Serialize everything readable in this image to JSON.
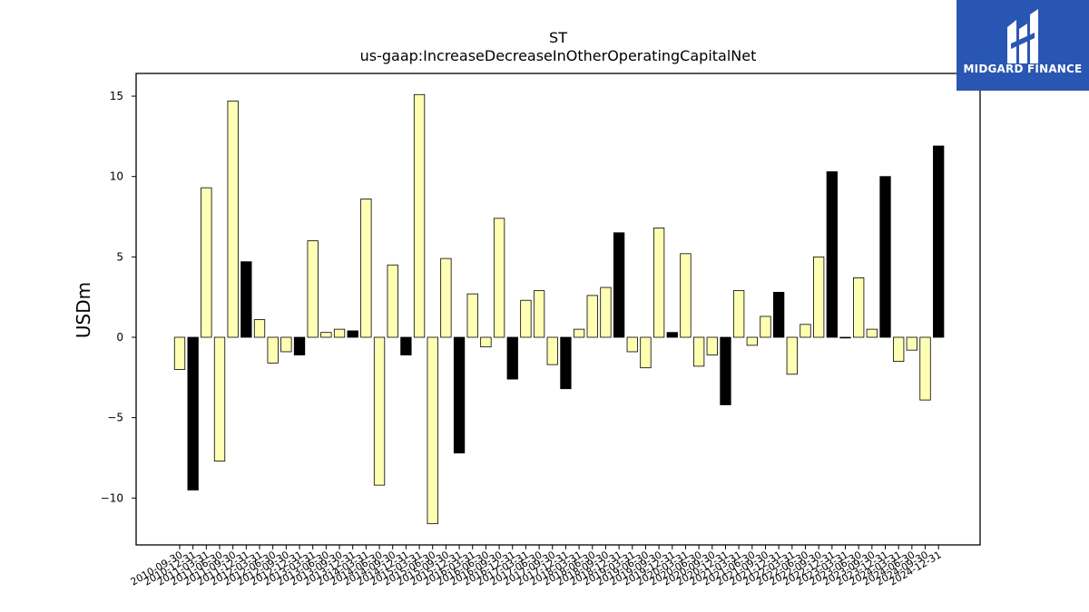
{
  "chart_data": {
    "type": "bar",
    "title": "ST",
    "subtitle": "us-gaap:IncreaseDecreaseInOtherOperatingCapitalNet",
    "ylabel": "USDm",
    "xlabel": "",
    "ylim": [
      -13,
      16.5
    ],
    "yticks": [
      -10,
      -5,
      0,
      5,
      10,
      15
    ],
    "ytick_labels": [
      "−10",
      "−5",
      "0",
      "5",
      "10",
      "15"
    ],
    "grid": false,
    "colors": {
      "default": "#ffffb3",
      "q4": "#000000",
      "edge": "#000000"
    },
    "categories": [
      "2010-09-30",
      "2010-12-31",
      "2011-03-31",
      "2011-06-30",
      "2011-09-30",
      "2011-12-31",
      "2012-03-31",
      "2012-06-30",
      "2012-09-30",
      "2012-12-31",
      "2013-03-31",
      "2013-06-30",
      "2013-09-30",
      "2013-12-31",
      "2014-03-31",
      "2014-06-30",
      "2014-09-30",
      "2014-12-31",
      "2015-03-31",
      "2015-06-30",
      "2015-09-30",
      "2015-12-31",
      "2016-03-31",
      "2016-06-30",
      "2016-09-30",
      "2016-12-31",
      "2017-03-31",
      "2017-06-30",
      "2017-09-30",
      "2017-12-31",
      "2018-03-31",
      "2018-06-30",
      "2018-09-30",
      "2018-12-31",
      "2019-03-31",
      "2019-06-30",
      "2019-09-30",
      "2019-12-31",
      "2020-03-31",
      "2020-06-30",
      "2020-09-30",
      "2020-12-31",
      "2021-03-31",
      "2021-06-30",
      "2021-09-30",
      "2021-12-31",
      "2022-03-31",
      "2022-06-30",
      "2022-09-30",
      "2022-12-31",
      "2023-03-31",
      "2023-06-30",
      "2023-09-30",
      "2023-12-31",
      "2024-03-31",
      "2024-06-30",
      "2024-09-30",
      "2024-12-31"
    ],
    "values": [
      -2.0,
      -9.5,
      9.3,
      -7.7,
      14.7,
      4.7,
      1.1,
      -1.6,
      -0.9,
      -1.1,
      6.0,
      0.3,
      0.5,
      0.4,
      8.6,
      -9.2,
      4.5,
      -1.1,
      15.1,
      -11.6,
      4.9,
      -7.2,
      2.7,
      -0.6,
      7.4,
      -2.6,
      2.3,
      2.9,
      -1.7,
      -3.2,
      0.5,
      2.6,
      3.1,
      6.5,
      -0.9,
      -1.9,
      6.8,
      0.3,
      5.2,
      -1.8,
      -1.1,
      -4.2,
      2.9,
      -0.5,
      1.3,
      2.8,
      -2.3,
      0.8,
      5.0,
      10.3,
      0.0,
      3.7,
      0.5,
      10.0,
      -1.5,
      -0.8,
      -3.9,
      11.9
    ],
    "highlight_q4": [
      false,
      true,
      false,
      false,
      false,
      true,
      false,
      false,
      false,
      true,
      false,
      false,
      false,
      true,
      false,
      false,
      false,
      true,
      false,
      false,
      false,
      true,
      false,
      false,
      false,
      true,
      false,
      false,
      false,
      true,
      false,
      false,
      false,
      true,
      false,
      false,
      false,
      true,
      false,
      false,
      false,
      true,
      false,
      false,
      false,
      true,
      false,
      false,
      false,
      true,
      false,
      false,
      false,
      true,
      false,
      false,
      false,
      true
    ]
  },
  "logo": {
    "text": "MIDGARD FINANCE",
    "bg_color": "#2a56b3",
    "fg_color": "#ffffff"
  }
}
